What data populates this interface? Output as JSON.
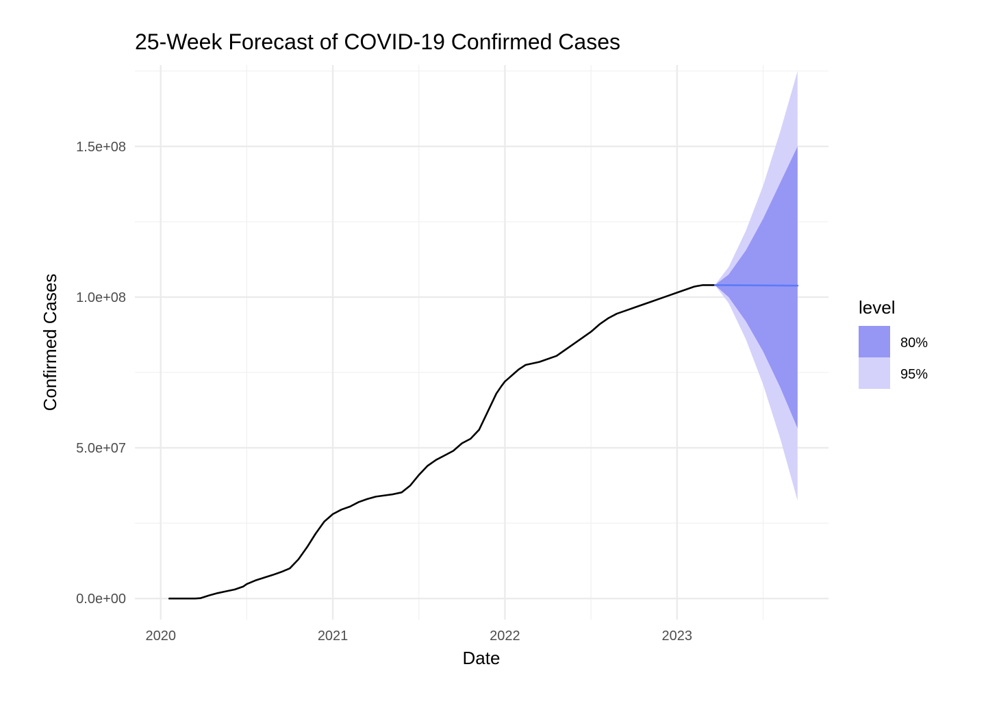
{
  "chart_data": {
    "type": "line",
    "title": "25-Week Forecast of COVID-19 Confirmed Cases",
    "xlabel": "Date",
    "ylabel": "Confirmed Cases",
    "x_tick_labels": [
      "2020",
      "2021",
      "2022",
      "2023"
    ],
    "x_ticks": [
      2020,
      2021,
      2022,
      2023
    ],
    "y_tick_labels": [
      "0.0e+00",
      "5.0e+07",
      "1.0e+08",
      "1.5e+08"
    ],
    "y_ticks": [
      0,
      50000000,
      100000000,
      150000000
    ],
    "xlim": [
      2019.85,
      2023.88
    ],
    "ylim": [
      -7000000,
      177000000
    ],
    "grid": true,
    "legend": {
      "title": "level",
      "placement": "right",
      "items": [
        {
          "label": "80%",
          "color": "#9696f5"
        },
        {
          "label": "95%",
          "color": "#d4d2fa"
        }
      ]
    },
    "series": [
      {
        "kind": "observed",
        "color": "#000000",
        "x": [
          2020.05,
          2020.1,
          2020.15,
          2020.2,
          2020.23,
          2020.28,
          2020.33,
          2020.38,
          2020.43,
          2020.48,
          2020.5,
          2020.55,
          2020.6,
          2020.65,
          2020.7,
          2020.75,
          2020.8,
          2020.85,
          2020.9,
          2020.95,
          2021.0,
          2021.05,
          2021.1,
          2021.15,
          2021.2,
          2021.25,
          2021.3,
          2021.35,
          2021.4,
          2021.45,
          2021.5,
          2021.55,
          2021.6,
          2021.65,
          2021.7,
          2021.75,
          2021.8,
          2021.85,
          2021.9,
          2021.95,
          2021.98,
          2022.0,
          2022.02,
          2022.04,
          2022.06,
          2022.08,
          2022.12,
          2022.2,
          2022.3,
          2022.35,
          2022.4,
          2022.45,
          2022.5,
          2022.55,
          2022.6,
          2022.65,
          2022.7,
          2022.75,
          2022.8,
          2022.85,
          2022.9,
          2022.95,
          2023.0,
          2023.05,
          2023.1,
          2023.15,
          2023.22
        ],
        "y": [
          0,
          0,
          0,
          0,
          100000,
          1000000,
          1800000,
          2400000,
          3000000,
          4000000,
          4800000,
          6000000,
          6900000,
          7800000,
          8800000,
          10000000,
          13000000,
          17000000,
          21500000,
          25500000,
          28000000,
          29500000,
          30500000,
          32000000,
          33000000,
          33800000,
          34200000,
          34600000,
          35200000,
          37500000,
          41000000,
          44000000,
          46000000,
          47500000,
          49000000,
          51500000,
          53000000,
          56000000,
          62000000,
          68000000,
          70500000,
          72000000,
          73000000,
          74000000,
          75000000,
          76000000,
          77500000,
          78500000,
          80500000,
          82500000,
          84500000,
          86500000,
          88500000,
          91000000,
          93000000,
          94500000,
          95500000,
          96500000,
          97500000,
          98500000,
          99500000,
          100500000,
          101500000,
          102500000,
          103500000,
          104000000,
          104000000
        ]
      },
      {
        "kind": "forecast",
        "color": "#5b7bf5",
        "x": [
          2023.22,
          2023.7
        ],
        "y": [
          104000000,
          103800000
        ]
      }
    ],
    "intervals": [
      {
        "level": "95%",
        "color": "#d4d2fa",
        "x": [
          2023.22,
          2023.3,
          2023.4,
          2023.5,
          2023.6,
          2023.7
        ],
        "lower": [
          104000000,
          98000000,
          86000000,
          71000000,
          53000000,
          32500000
        ],
        "upper": [
          104000000,
          110000000,
          122000000,
          137000000,
          155000000,
          175000000
        ]
      },
      {
        "level": "80%",
        "color": "#9696f5",
        "x": [
          2023.22,
          2023.3,
          2023.4,
          2023.5,
          2023.6,
          2023.7
        ],
        "lower": [
          104000000,
          100000000,
          92000000,
          82000000,
          70000000,
          56500000
        ],
        "upper": [
          104000000,
          107500000,
          115500000,
          126000000,
          138000000,
          150000000
        ]
      }
    ]
  }
}
